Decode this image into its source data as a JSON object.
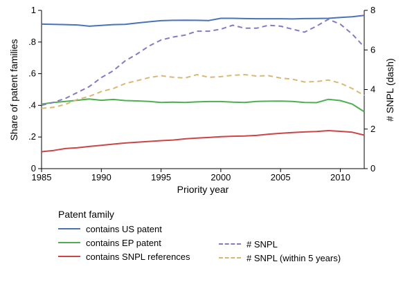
{
  "chart_data": {
    "type": "line",
    "xlabel": "Priority year",
    "ylabel_left": "Share of patent families",
    "ylabel_right": "# SNPL (dash)",
    "xlim": [
      1985,
      2012
    ],
    "ylim_left": [
      0,
      1
    ],
    "ylim_right": [
      0,
      8
    ],
    "x_ticks": [
      "1985",
      "1990",
      "1995",
      "2000",
      "2005",
      "2010"
    ],
    "y_left_ticks": [
      "0",
      ".2",
      ".4",
      ".6",
      ".8",
      "1"
    ],
    "y_right_ticks": [
      "0",
      "2",
      "4",
      "6",
      "8"
    ],
    "legend_title": "Patent family",
    "legend_position": "bottom",
    "grid": false,
    "x": [
      1985,
      1986,
      1987,
      1988,
      1989,
      1990,
      1991,
      1992,
      1993,
      1994,
      1995,
      1996,
      1997,
      1998,
      1999,
      2000,
      2001,
      2002,
      2003,
      2004,
      2005,
      2006,
      2007,
      2008,
      2009,
      2010,
      2011,
      2012
    ],
    "series": [
      {
        "name": "contains US patent",
        "axis": "left",
        "style": "solid",
        "color": "#4a72b8",
        "values": [
          0.913,
          0.912,
          0.91,
          0.908,
          0.9,
          0.905,
          0.91,
          0.912,
          0.92,
          0.928,
          0.935,
          0.937,
          0.938,
          0.937,
          0.936,
          0.95,
          0.95,
          0.948,
          0.947,
          0.947,
          0.947,
          0.946,
          0.948,
          0.949,
          0.95,
          0.955,
          0.96,
          0.968
        ]
      },
      {
        "name": "contains EP patent",
        "axis": "left",
        "style": "solid",
        "color": "#4caf50",
        "values": [
          0.408,
          0.418,
          0.425,
          0.432,
          0.44,
          0.432,
          0.437,
          0.43,
          0.428,
          0.425,
          0.418,
          0.42,
          0.418,
          0.422,
          0.424,
          0.424,
          0.42,
          0.418,
          0.425,
          0.426,
          0.427,
          0.425,
          0.418,
          0.417,
          0.438,
          0.43,
          0.408,
          0.36
        ]
      },
      {
        "name": "contains SNPL references",
        "axis": "left",
        "style": "solid",
        "color": "#cc4444",
        "values": [
          0.107,
          0.115,
          0.127,
          0.132,
          0.14,
          0.147,
          0.155,
          0.162,
          0.167,
          0.172,
          0.177,
          0.181,
          0.188,
          0.193,
          0.197,
          0.202,
          0.205,
          0.206,
          0.21,
          0.218,
          0.223,
          0.228,
          0.232,
          0.235,
          0.24,
          0.236,
          0.23,
          0.212
        ]
      },
      {
        "name": "# SNPL",
        "axis": "right",
        "style": "dash",
        "color": "#8878c3",
        "values": [
          3.2,
          3.35,
          3.55,
          3.85,
          4.15,
          4.6,
          4.95,
          5.45,
          5.8,
          6.2,
          6.5,
          6.65,
          6.75,
          6.95,
          6.95,
          7.05,
          7.25,
          7.1,
          7.1,
          7.25,
          7.2,
          7.05,
          6.9,
          7.2,
          7.55,
          7.3,
          6.8,
          6.15
        ]
      },
      {
        "name": "# SNPL (within 5 years)",
        "axis": "right",
        "style": "dash",
        "color": "#d8b873",
        "values": [
          3.05,
          3.1,
          3.25,
          3.5,
          3.65,
          3.9,
          4.05,
          4.3,
          4.45,
          4.6,
          4.7,
          4.62,
          4.58,
          4.75,
          4.62,
          4.65,
          4.72,
          4.75,
          4.68,
          4.7,
          4.58,
          4.52,
          4.38,
          4.4,
          4.48,
          4.32,
          4.05,
          3.7
        ]
      }
    ]
  }
}
